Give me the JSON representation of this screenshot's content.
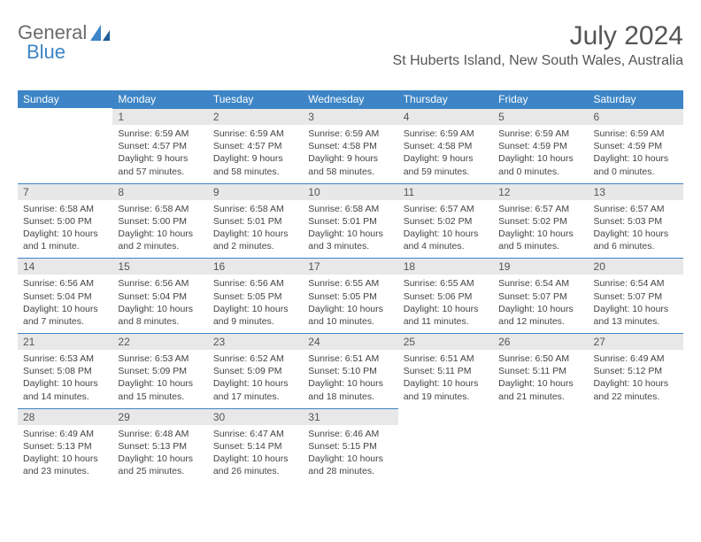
{
  "brand": {
    "text_general": "General",
    "text_blue": "Blue"
  },
  "title": "July 2024",
  "location": "St Huberts Island, New South Wales, Australia",
  "colors": {
    "header_bg": "#3d85c6",
    "header_text": "#ffffff",
    "daynum_bg": "#e8e8e8",
    "border": "#3d85c6",
    "body_text": "#444444",
    "title_text": "#555555"
  },
  "day_headers": [
    "Sunday",
    "Monday",
    "Tuesday",
    "Wednesday",
    "Thursday",
    "Friday",
    "Saturday"
  ],
  "weeks": [
    [
      {
        "n": "",
        "sunrise": "",
        "sunset": "",
        "daylight": ""
      },
      {
        "n": "1",
        "sunrise": "Sunrise: 6:59 AM",
        "sunset": "Sunset: 4:57 PM",
        "daylight": "Daylight: 9 hours and 57 minutes."
      },
      {
        "n": "2",
        "sunrise": "Sunrise: 6:59 AM",
        "sunset": "Sunset: 4:57 PM",
        "daylight": "Daylight: 9 hours and 58 minutes."
      },
      {
        "n": "3",
        "sunrise": "Sunrise: 6:59 AM",
        "sunset": "Sunset: 4:58 PM",
        "daylight": "Daylight: 9 hours and 58 minutes."
      },
      {
        "n": "4",
        "sunrise": "Sunrise: 6:59 AM",
        "sunset": "Sunset: 4:58 PM",
        "daylight": "Daylight: 9 hours and 59 minutes."
      },
      {
        "n": "5",
        "sunrise": "Sunrise: 6:59 AM",
        "sunset": "Sunset: 4:59 PM",
        "daylight": "Daylight: 10 hours and 0 minutes."
      },
      {
        "n": "6",
        "sunrise": "Sunrise: 6:59 AM",
        "sunset": "Sunset: 4:59 PM",
        "daylight": "Daylight: 10 hours and 0 minutes."
      }
    ],
    [
      {
        "n": "7",
        "sunrise": "Sunrise: 6:58 AM",
        "sunset": "Sunset: 5:00 PM",
        "daylight": "Daylight: 10 hours and 1 minute."
      },
      {
        "n": "8",
        "sunrise": "Sunrise: 6:58 AM",
        "sunset": "Sunset: 5:00 PM",
        "daylight": "Daylight: 10 hours and 2 minutes."
      },
      {
        "n": "9",
        "sunrise": "Sunrise: 6:58 AM",
        "sunset": "Sunset: 5:01 PM",
        "daylight": "Daylight: 10 hours and 2 minutes."
      },
      {
        "n": "10",
        "sunrise": "Sunrise: 6:58 AM",
        "sunset": "Sunset: 5:01 PM",
        "daylight": "Daylight: 10 hours and 3 minutes."
      },
      {
        "n": "11",
        "sunrise": "Sunrise: 6:57 AM",
        "sunset": "Sunset: 5:02 PM",
        "daylight": "Daylight: 10 hours and 4 minutes."
      },
      {
        "n": "12",
        "sunrise": "Sunrise: 6:57 AM",
        "sunset": "Sunset: 5:02 PM",
        "daylight": "Daylight: 10 hours and 5 minutes."
      },
      {
        "n": "13",
        "sunrise": "Sunrise: 6:57 AM",
        "sunset": "Sunset: 5:03 PM",
        "daylight": "Daylight: 10 hours and 6 minutes."
      }
    ],
    [
      {
        "n": "14",
        "sunrise": "Sunrise: 6:56 AM",
        "sunset": "Sunset: 5:04 PM",
        "daylight": "Daylight: 10 hours and 7 minutes."
      },
      {
        "n": "15",
        "sunrise": "Sunrise: 6:56 AM",
        "sunset": "Sunset: 5:04 PM",
        "daylight": "Daylight: 10 hours and 8 minutes."
      },
      {
        "n": "16",
        "sunrise": "Sunrise: 6:56 AM",
        "sunset": "Sunset: 5:05 PM",
        "daylight": "Daylight: 10 hours and 9 minutes."
      },
      {
        "n": "17",
        "sunrise": "Sunrise: 6:55 AM",
        "sunset": "Sunset: 5:05 PM",
        "daylight": "Daylight: 10 hours and 10 minutes."
      },
      {
        "n": "18",
        "sunrise": "Sunrise: 6:55 AM",
        "sunset": "Sunset: 5:06 PM",
        "daylight": "Daylight: 10 hours and 11 minutes."
      },
      {
        "n": "19",
        "sunrise": "Sunrise: 6:54 AM",
        "sunset": "Sunset: 5:07 PM",
        "daylight": "Daylight: 10 hours and 12 minutes."
      },
      {
        "n": "20",
        "sunrise": "Sunrise: 6:54 AM",
        "sunset": "Sunset: 5:07 PM",
        "daylight": "Daylight: 10 hours and 13 minutes."
      }
    ],
    [
      {
        "n": "21",
        "sunrise": "Sunrise: 6:53 AM",
        "sunset": "Sunset: 5:08 PM",
        "daylight": "Daylight: 10 hours and 14 minutes."
      },
      {
        "n": "22",
        "sunrise": "Sunrise: 6:53 AM",
        "sunset": "Sunset: 5:09 PM",
        "daylight": "Daylight: 10 hours and 15 minutes."
      },
      {
        "n": "23",
        "sunrise": "Sunrise: 6:52 AM",
        "sunset": "Sunset: 5:09 PM",
        "daylight": "Daylight: 10 hours and 17 minutes."
      },
      {
        "n": "24",
        "sunrise": "Sunrise: 6:51 AM",
        "sunset": "Sunset: 5:10 PM",
        "daylight": "Daylight: 10 hours and 18 minutes."
      },
      {
        "n": "25",
        "sunrise": "Sunrise: 6:51 AM",
        "sunset": "Sunset: 5:11 PM",
        "daylight": "Daylight: 10 hours and 19 minutes."
      },
      {
        "n": "26",
        "sunrise": "Sunrise: 6:50 AM",
        "sunset": "Sunset: 5:11 PM",
        "daylight": "Daylight: 10 hours and 21 minutes."
      },
      {
        "n": "27",
        "sunrise": "Sunrise: 6:49 AM",
        "sunset": "Sunset: 5:12 PM",
        "daylight": "Daylight: 10 hours and 22 minutes."
      }
    ],
    [
      {
        "n": "28",
        "sunrise": "Sunrise: 6:49 AM",
        "sunset": "Sunset: 5:13 PM",
        "daylight": "Daylight: 10 hours and 23 minutes."
      },
      {
        "n": "29",
        "sunrise": "Sunrise: 6:48 AM",
        "sunset": "Sunset: 5:13 PM",
        "daylight": "Daylight: 10 hours and 25 minutes."
      },
      {
        "n": "30",
        "sunrise": "Sunrise: 6:47 AM",
        "sunset": "Sunset: 5:14 PM",
        "daylight": "Daylight: 10 hours and 26 minutes."
      },
      {
        "n": "31",
        "sunrise": "Sunrise: 6:46 AM",
        "sunset": "Sunset: 5:15 PM",
        "daylight": "Daylight: 10 hours and 28 minutes."
      },
      {
        "n": "",
        "sunrise": "",
        "sunset": "",
        "daylight": ""
      },
      {
        "n": "",
        "sunrise": "",
        "sunset": "",
        "daylight": ""
      },
      {
        "n": "",
        "sunrise": "",
        "sunset": "",
        "daylight": ""
      }
    ]
  ]
}
